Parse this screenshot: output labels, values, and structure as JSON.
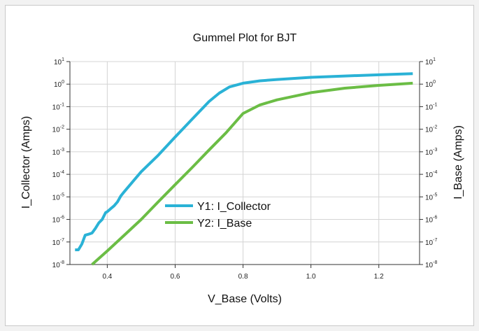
{
  "chart_data": {
    "type": "line",
    "title": "Gummel Plot for BJT",
    "xlabel": "V_Base (Volts)",
    "ylabel_left": "I_Collector (Amps)",
    "ylabel_right": "I_Base (Amps)",
    "xlim": [
      0.29,
      1.32
    ],
    "ylim": [
      1e-08,
      10
    ],
    "yscale": "log",
    "grid": true,
    "legend_position": "center",
    "x_ticks": [
      "0.4",
      "0.6",
      "0.8",
      "1.0",
      "1.2"
    ],
    "x_tick_values": [
      0.4,
      0.6,
      0.8,
      1.0,
      1.2
    ],
    "y_ticks": [
      {
        "base": "10",
        "exp": "1"
      },
      {
        "base": "10",
        "exp": "0"
      },
      {
        "base": "10",
        "exp": "-1"
      },
      {
        "base": "10",
        "exp": "-2"
      },
      {
        "base": "10",
        "exp": "-3"
      },
      {
        "base": "10",
        "exp": "-4"
      },
      {
        "base": "10",
        "exp": "-5"
      },
      {
        "base": "10",
        "exp": "-6"
      },
      {
        "base": "10",
        "exp": "-7"
      },
      {
        "base": "10",
        "exp": "-8"
      }
    ],
    "y_tick_exponents": [
      1,
      0,
      -1,
      -2,
      -3,
      -4,
      -5,
      -6,
      -7,
      -8
    ],
    "series": [
      {
        "name": "Y1: I_Collector",
        "color": "#2ab2d6",
        "x": [
          0.305,
          0.315,
          0.325,
          0.335,
          0.345,
          0.355,
          0.365,
          0.375,
          0.385,
          0.395,
          0.4,
          0.41,
          0.42,
          0.43,
          0.44,
          0.45,
          0.5,
          0.55,
          0.6,
          0.65,
          0.7,
          0.73,
          0.76,
          0.8,
          0.85,
          0.9,
          1.0,
          1.1,
          1.2,
          1.3
        ],
        "y": [
          4.5e-08,
          4.5e-08,
          8e-08,
          2e-07,
          2.2e-07,
          2.5e-07,
          4e-07,
          7e-07,
          1e-06,
          2e-06,
          2.2e-06,
          3e-06,
          4e-06,
          6e-06,
          1.1e-05,
          1.7e-05,
          0.00013,
          0.0007,
          0.0045,
          0.028,
          0.17,
          0.4,
          0.75,
          1.1,
          1.4,
          1.6,
          2.0,
          2.3,
          2.6,
          2.9
        ]
      },
      {
        "name": "Y2: I_Base",
        "color": "#6bbd45",
        "x": [
          0.355,
          0.4,
          0.45,
          0.5,
          0.55,
          0.6,
          0.65,
          0.7,
          0.75,
          0.8,
          0.85,
          0.9,
          1.0,
          1.1,
          1.2,
          1.3
        ],
        "y": [
          1e-08,
          4e-08,
          2e-07,
          1e-06,
          6e-06,
          3.5e-05,
          0.0002,
          0.0012,
          0.007,
          0.05,
          0.12,
          0.2,
          0.42,
          0.66,
          0.88,
          1.1
        ]
      }
    ]
  }
}
